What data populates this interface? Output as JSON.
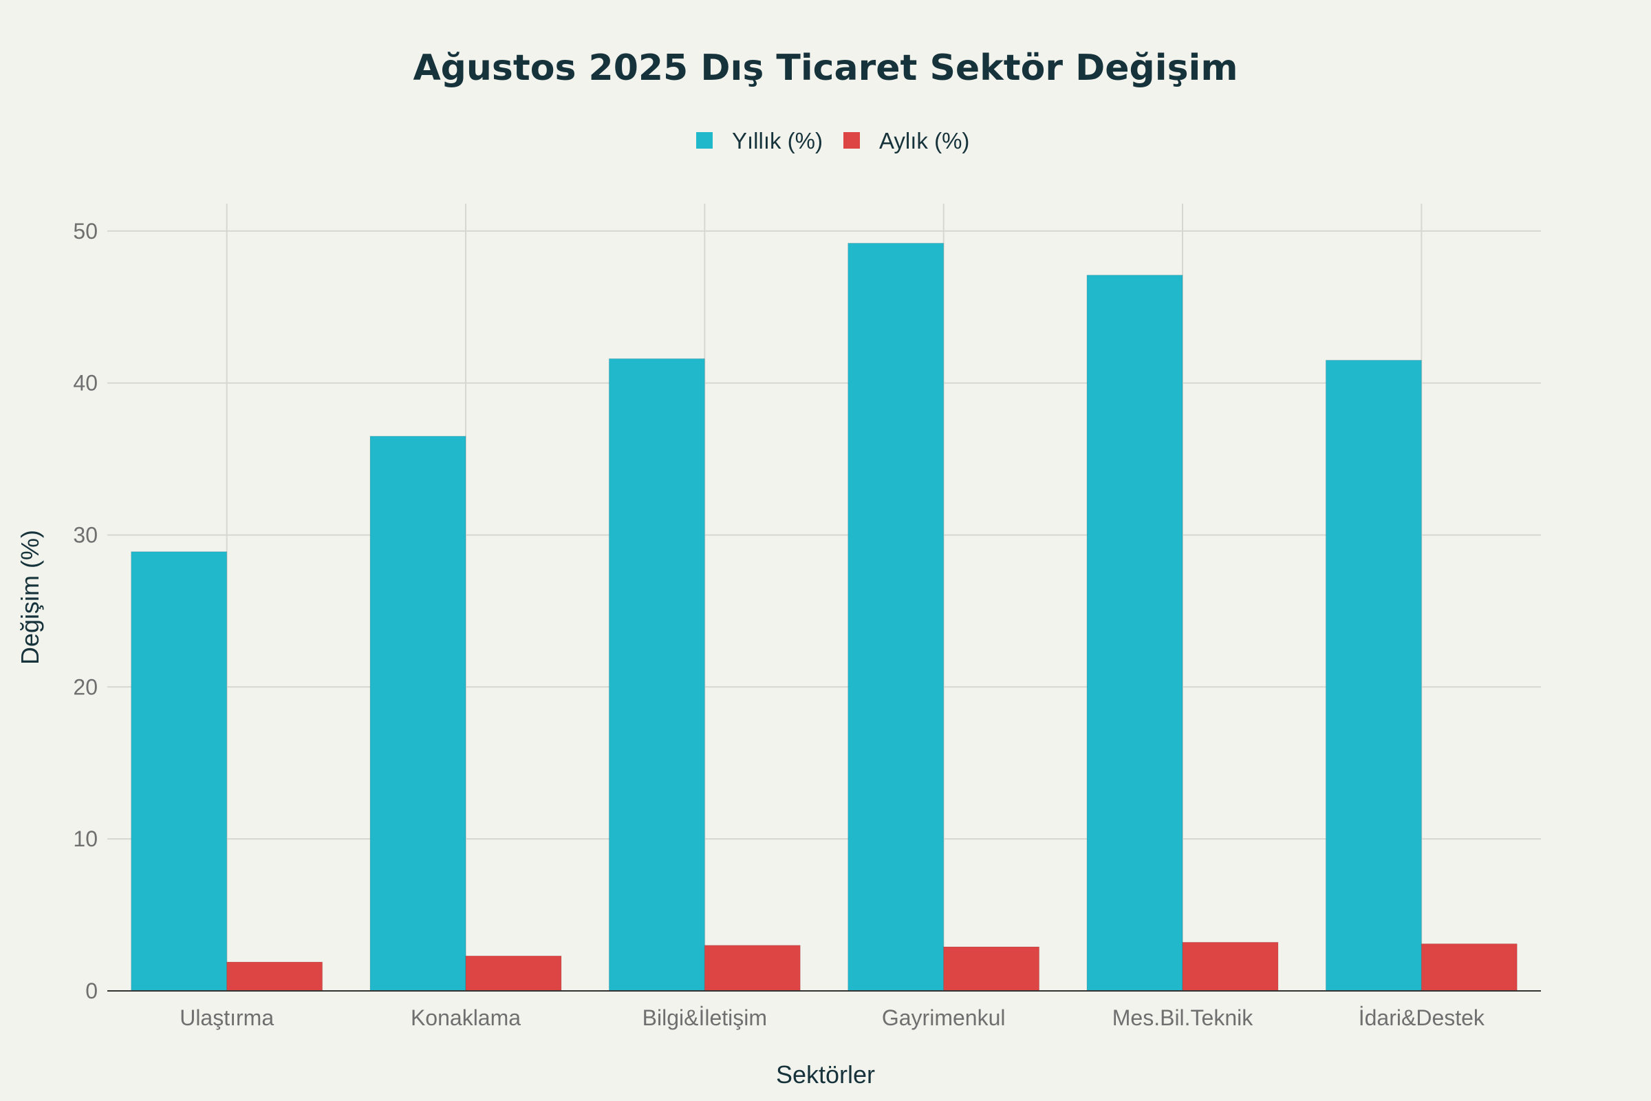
{
  "chart_data": {
    "type": "bar",
    "title": "Ağustos 2025 Dış Ticaret Sektör Değişim",
    "xlabel": "Sektörler",
    "ylabel": "Değişim (%)",
    "categories": [
      "Ulaştırma",
      "Konaklama",
      "Bilgi&İletişim",
      "Gayrimenkul",
      "Mes.Bil.Teknik",
      "İdari&Destek"
    ],
    "series": [
      {
        "name": "Yıllık (%)",
        "color": "#21b8cc",
        "values": [
          28.9,
          36.5,
          41.6,
          49.2,
          47.1,
          41.5
        ]
      },
      {
        "name": "Aylık (%)",
        "color": "#dd4545",
        "values": [
          1.9,
          2.3,
          3.0,
          2.9,
          3.2,
          3.1
        ]
      }
    ],
    "ylim": [
      0,
      51.8
    ],
    "yticks": [
      0,
      10,
      20,
      30,
      40,
      50
    ],
    "grid": true,
    "legend_position": "top-center"
  }
}
